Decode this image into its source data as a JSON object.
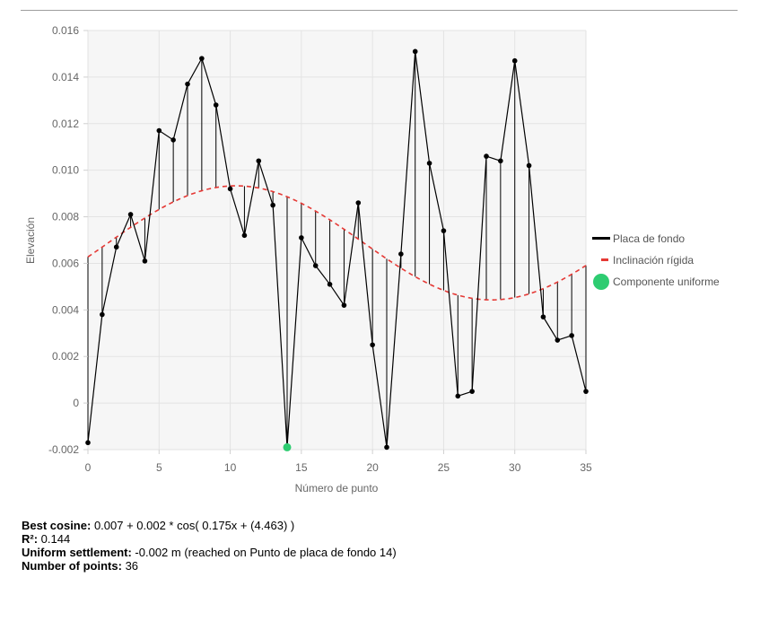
{
  "chart_data": {
    "type": "line",
    "xlabel": "Número de punto",
    "ylabel": "Elevación",
    "xlim": [
      0,
      35
    ],
    "ylim": [
      -0.002,
      0.016
    ],
    "x_ticks": [
      0,
      5,
      10,
      15,
      20,
      25,
      30,
      35
    ],
    "y_ticks": [
      -0.002,
      0,
      0.002,
      0.004,
      0.006,
      0.008,
      0.01,
      0.012,
      0.014,
      0.016
    ],
    "y_tick_labels": [
      "-0.002",
      "0",
      "0.002",
      "0.004",
      "0.006",
      "0.008",
      "0.010",
      "0.012",
      "0.014",
      "0.016"
    ],
    "grid": true,
    "legend_position": "right",
    "series": [
      {
        "name": "Placa de fondo",
        "color": "#000000",
        "x": [
          0,
          1,
          2,
          3,
          4,
          5,
          6,
          7,
          8,
          9,
          10,
          11,
          12,
          13,
          14,
          15,
          16,
          17,
          18,
          19,
          20,
          21,
          22,
          23,
          24,
          25,
          26,
          27,
          28,
          29,
          30,
          31,
          32,
          33,
          34,
          35
        ],
        "values": [
          -0.0017,
          0.0038,
          0.0067,
          0.0081,
          0.0061,
          0.0117,
          0.0113,
          0.0137,
          0.0148,
          0.0128,
          0.0092,
          0.0072,
          0.0104,
          0.0085,
          -0.0019,
          0.0071,
          0.0059,
          0.0051,
          0.0042,
          0.0086,
          0.0025,
          -0.0019,
          0.0064,
          0.0151,
          0.0103,
          0.0074,
          0.0003,
          0.0005,
          0.0106,
          0.0104,
          0.0147,
          0.0102,
          0.0037,
          0.0027,
          0.0029,
          0.0005
        ]
      },
      {
        "name": "Inclinación rígida",
        "color": "#e53935",
        "style": "dashed",
        "formula": {
          "a": 0.00688,
          "b": 0.00245,
          "c": 0.175,
          "d": 4.463
        }
      },
      {
        "name": "Componente uniforme",
        "color": "#2ecc71",
        "x": [
          14
        ],
        "values": [
          -0.0019
        ]
      }
    ]
  },
  "stats": {
    "best_cosine_label": "Best cosine:",
    "best_cosine_value": "0.007 + 0.002 * cos( 0.175x + (4.463) )",
    "r2_label": "R²:",
    "r2_value": "0.144",
    "uniform_label": "Uniform settlement:",
    "uniform_value": "-0.002 m (reached on Punto de placa de fondo 14)",
    "points_label": "Number of points:",
    "points_value": "36"
  }
}
